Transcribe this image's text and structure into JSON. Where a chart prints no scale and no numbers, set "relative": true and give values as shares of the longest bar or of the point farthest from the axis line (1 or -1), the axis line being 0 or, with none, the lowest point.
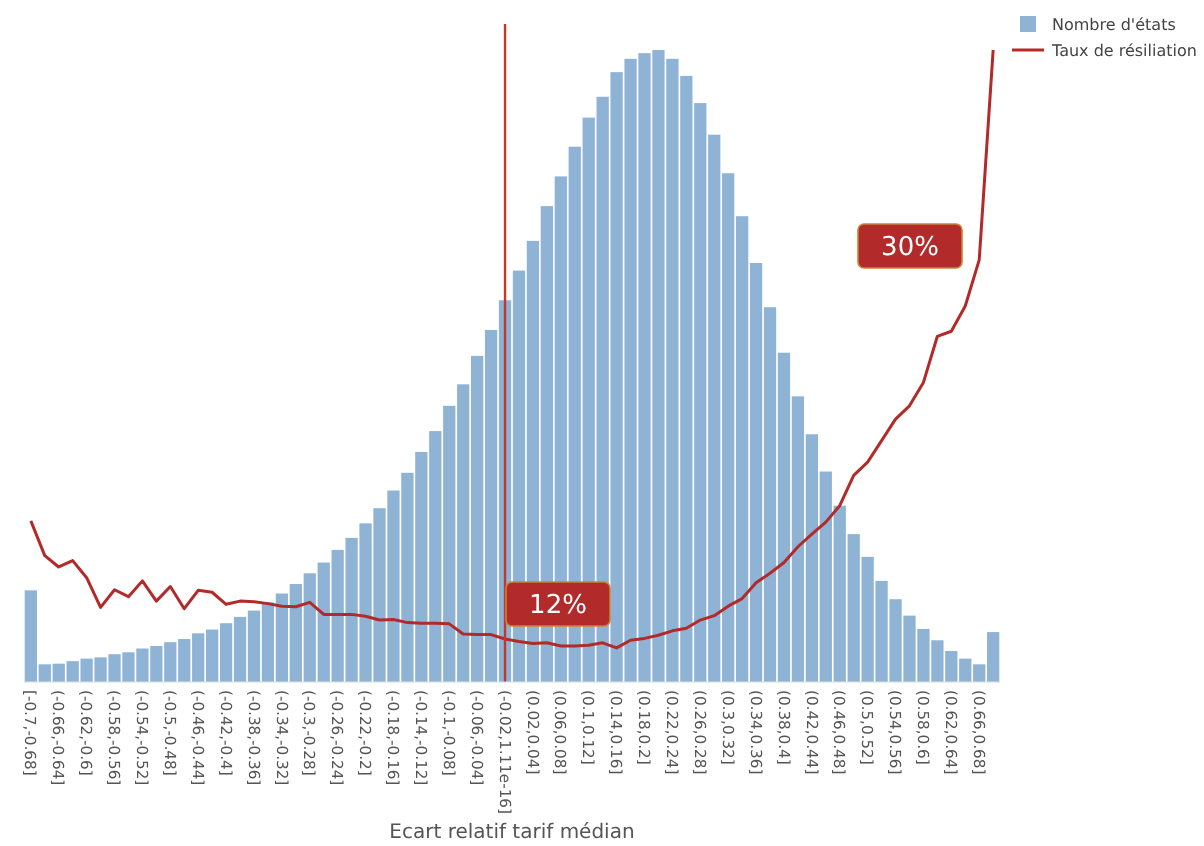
{
  "chart_data": {
    "type": "bar",
    "relative": true,
    "xlabel": "Ecart relatif tarif médian",
    "legend": "top right",
    "categories": [
      "[-0.7,-0.68]",
      null,
      "(-0.66,-0.64]",
      null,
      "(-0.62,-0.6]",
      null,
      "(-0.58,-0.56]",
      null,
      "(-0.54,-0.52]",
      null,
      "(-0.5,-0.48]",
      null,
      "(-0.46,-0.44]",
      null,
      "(-0.42,-0.4]",
      null,
      "(-0.38,-0.36]",
      null,
      "(-0.34,-0.32]",
      null,
      "(-0.3,-0.28]",
      null,
      "(-0.26,-0.24]",
      null,
      "(-0.22,-0.2]",
      null,
      "(-0.18,-0.16]",
      null,
      "(-0.14,-0.12]",
      null,
      "(-0.1,-0.08]",
      null,
      "(-0.06,-0.04]",
      null,
      "(-0.02,1.11e-16]",
      null,
      "(0.02,0.04]",
      null,
      "(0.06,0.08]",
      null,
      "(0.1,0.12]",
      null,
      "(0.14,0.16]",
      null,
      "(0.18,0.2]",
      null,
      "(0.22,0.24]",
      null,
      "(0.26,0.28]",
      null,
      "(0.3,0.32]",
      null,
      "(0.34,0.36]",
      null,
      "(0.38,0.4]",
      null,
      "(0.42,0.44]",
      null,
      "(0.46,0.48]",
      null,
      "(0.5,0.52]",
      null,
      "(0.54,0.56]",
      null,
      "(0.58,0.6]",
      null,
      "(0.62,0.64]",
      null,
      "(0.66,0.68]",
      null
    ],
    "series": [
      {
        "name": "Nombre d'états",
        "color": "#8fb3d5",
        "values": [
          0.145,
          0.028,
          0.029,
          0.033,
          0.037,
          0.039,
          0.044,
          0.047,
          0.053,
          0.057,
          0.063,
          0.068,
          0.077,
          0.083,
          0.093,
          0.103,
          0.113,
          0.126,
          0.14,
          0.155,
          0.172,
          0.189,
          0.209,
          0.228,
          0.251,
          0.275,
          0.303,
          0.331,
          0.364,
          0.397,
          0.437,
          0.471,
          0.516,
          0.557,
          0.604,
          0.651,
          0.698,
          0.753,
          0.8,
          0.847,
          0.893,
          0.926,
          0.965,
          0.986,
          0.995,
          1,
          0.986,
          0.959,
          0.916,
          0.866,
          0.805,
          0.737,
          0.663,
          0.593,
          0.521,
          0.452,
          0.392,
          0.333,
          0.279,
          0.234,
          0.198,
          0.16,
          0.131,
          0.105,
          0.084,
          0.066,
          0.049,
          0.037,
          0.028,
          0.079
        ]
      },
      {
        "name": "Taux de résiliation",
        "type": "line",
        "color": "#b22a2a",
        "values": [
          0.255,
          0.2,
          0.182,
          0.192,
          0.165,
          0.118,
          0.146,
          0.135,
          0.16,
          0.128,
          0.151,
          0.116,
          0.145,
          0.142,
          0.123,
          0.128,
          0.127,
          0.124,
          0.12,
          0.119,
          0.126,
          0.107,
          0.107,
          0.107,
          0.104,
          0.098,
          0.099,
          0.094,
          0.093,
          0.093,
          0.092,
          0.076,
          0.075,
          0.075,
          0.068,
          0.064,
          0.061,
          0.062,
          0.057,
          0.057,
          0.058,
          0.062,
          0.054,
          0.066,
          0.069,
          0.074,
          0.081,
          0.085,
          0.098,
          0.105,
          0.12,
          0.132,
          0.157,
          0.172,
          0.189,
          0.214,
          0.234,
          0.253,
          0.279,
          0.327,
          0.348,
          0.382,
          0.416,
          0.437,
          0.474,
          0.547,
          0.555,
          0.595,
          0.668,
          1
        ]
      }
    ],
    "ref_lines": [
      {
        "axis": "x",
        "value": "(-0.02,1.11e-16]",
        "color": "#c0392b"
      }
    ],
    "annotations": [
      "12%",
      "30%"
    ]
  }
}
